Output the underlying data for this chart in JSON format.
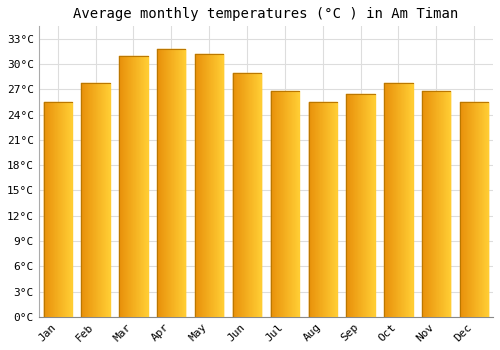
{
  "title": "Average monthly temperatures (°C ) in Am Timan",
  "months": [
    "Jan",
    "Feb",
    "Mar",
    "Apr",
    "May",
    "Jun",
    "Jul",
    "Aug",
    "Sep",
    "Oct",
    "Nov",
    "Dec"
  ],
  "values": [
    25.5,
    27.8,
    31.0,
    31.8,
    31.2,
    29.0,
    26.8,
    25.5,
    26.4,
    27.8,
    26.8,
    25.5
  ],
  "bar_color_left": "#E8900A",
  "bar_color_right": "#FFCC33",
  "bar_edge_color": "#CC8800",
  "background_color": "#ffffff",
  "grid_color": "#dddddd",
  "yticks": [
    0,
    3,
    6,
    9,
    12,
    15,
    18,
    21,
    24,
    27,
    30,
    33
  ],
  "ylim": [
    0,
    34.5
  ],
  "title_fontsize": 10,
  "tick_fontsize": 8,
  "font_family": "monospace"
}
